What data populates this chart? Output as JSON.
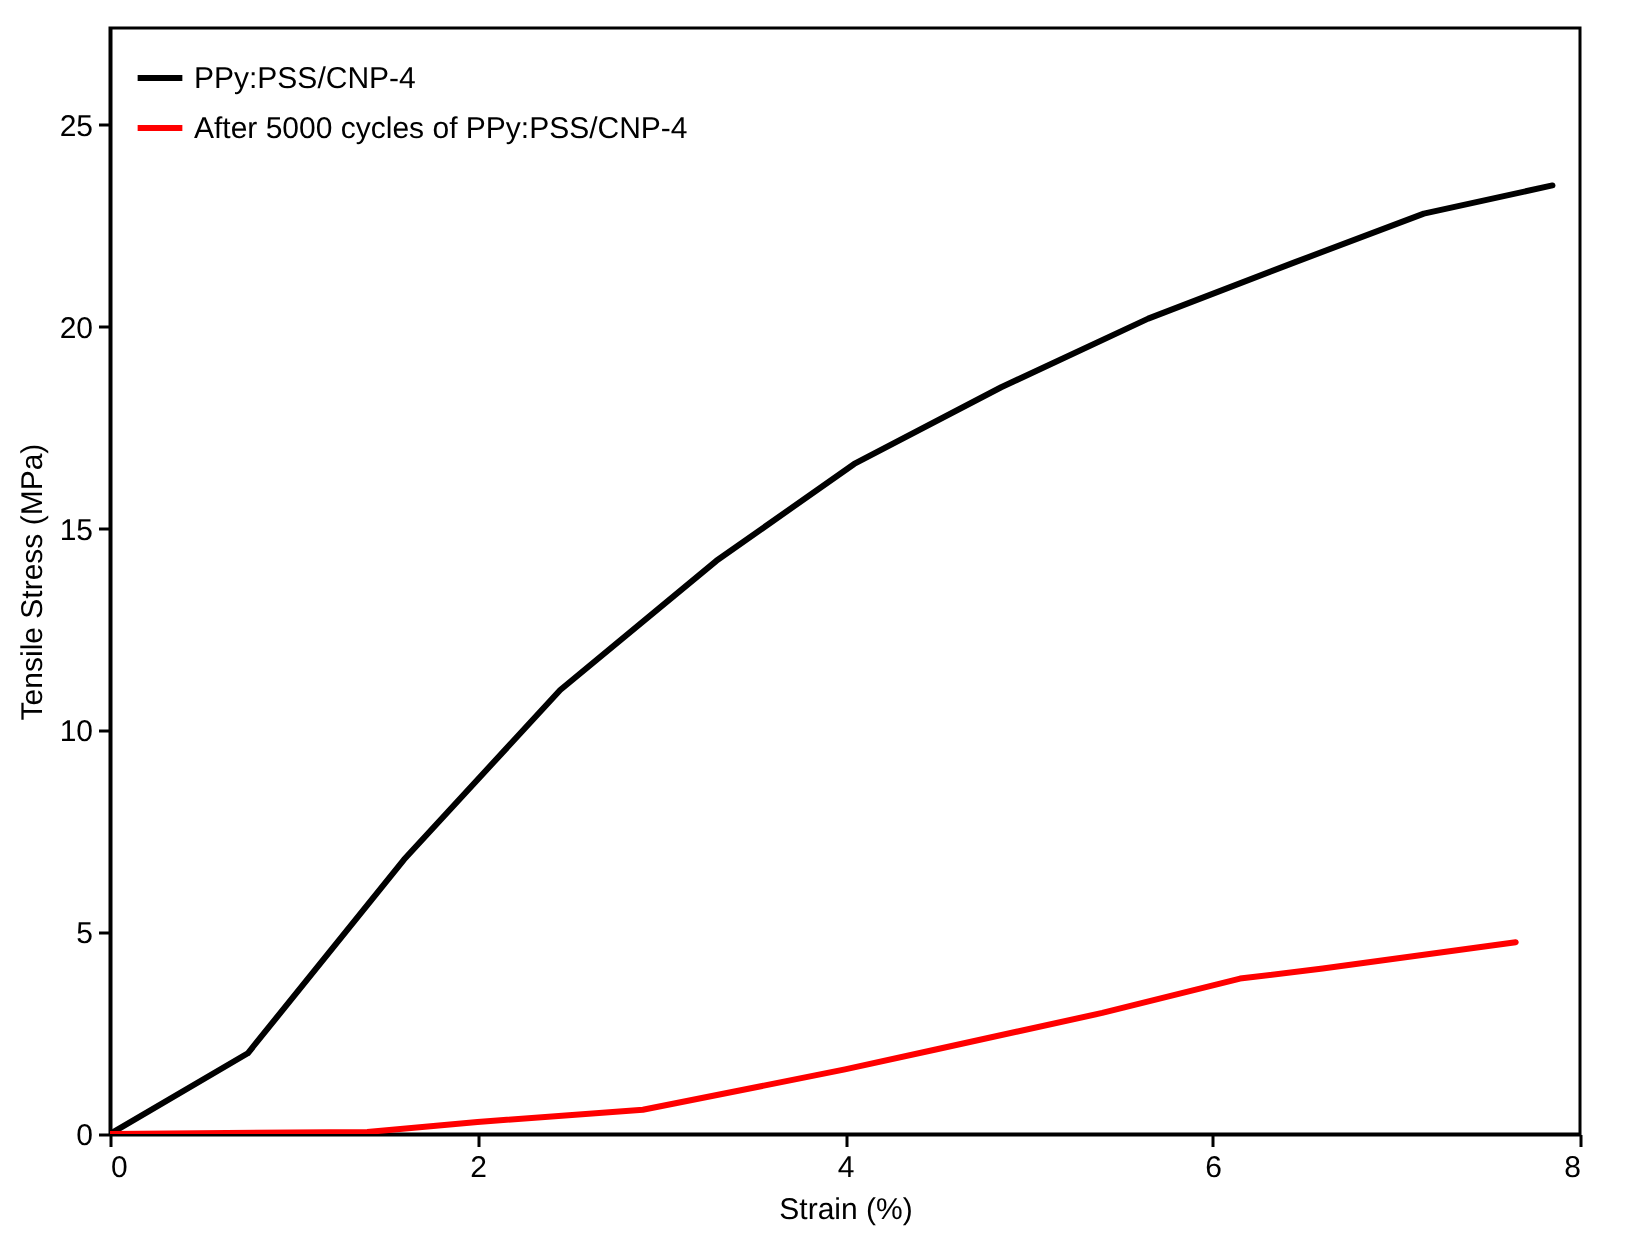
{
  "chart_data": {
    "type": "line",
    "xlabel": "Strain (%)",
    "ylabel": "Tensile Stress (MPa)",
    "xlim": [
      0,
      8
    ],
    "xticks": [
      0,
      2,
      4,
      6,
      8
    ],
    "ylim": [
      0,
      27.4
    ],
    "yticks": [
      0,
      5,
      10,
      15,
      20,
      25
    ],
    "grid": false,
    "legend": "top left",
    "line_style": "solid",
    "marker": "none",
    "series": [
      {
        "name": "PPy:PSS/CNP-4",
        "color": "#000000",
        "x": [
          0,
          0.75,
          1.6,
          2.45,
          3.3,
          4.05,
          4.85,
          5.65,
          6.45,
          7.15,
          7.85
        ],
        "values": [
          0,
          2.0,
          6.8,
          11.0,
          14.2,
          16.6,
          18.5,
          20.2,
          21.6,
          22.8,
          23.5
        ]
      },
      {
        "name": "After 5000 cycles of PPy:PSS/CNP-4",
        "color": "#ff0000",
        "x": [
          0,
          1.4,
          2.0,
          2.9,
          4.0,
          4.5,
          5.4,
          6.15,
          6.6,
          7.65
        ],
        "values": [
          0,
          0.05,
          0.3,
          0.6,
          1.6,
          2.1,
          3.0,
          3.85,
          4.1,
          4.75
        ]
      }
    ]
  }
}
